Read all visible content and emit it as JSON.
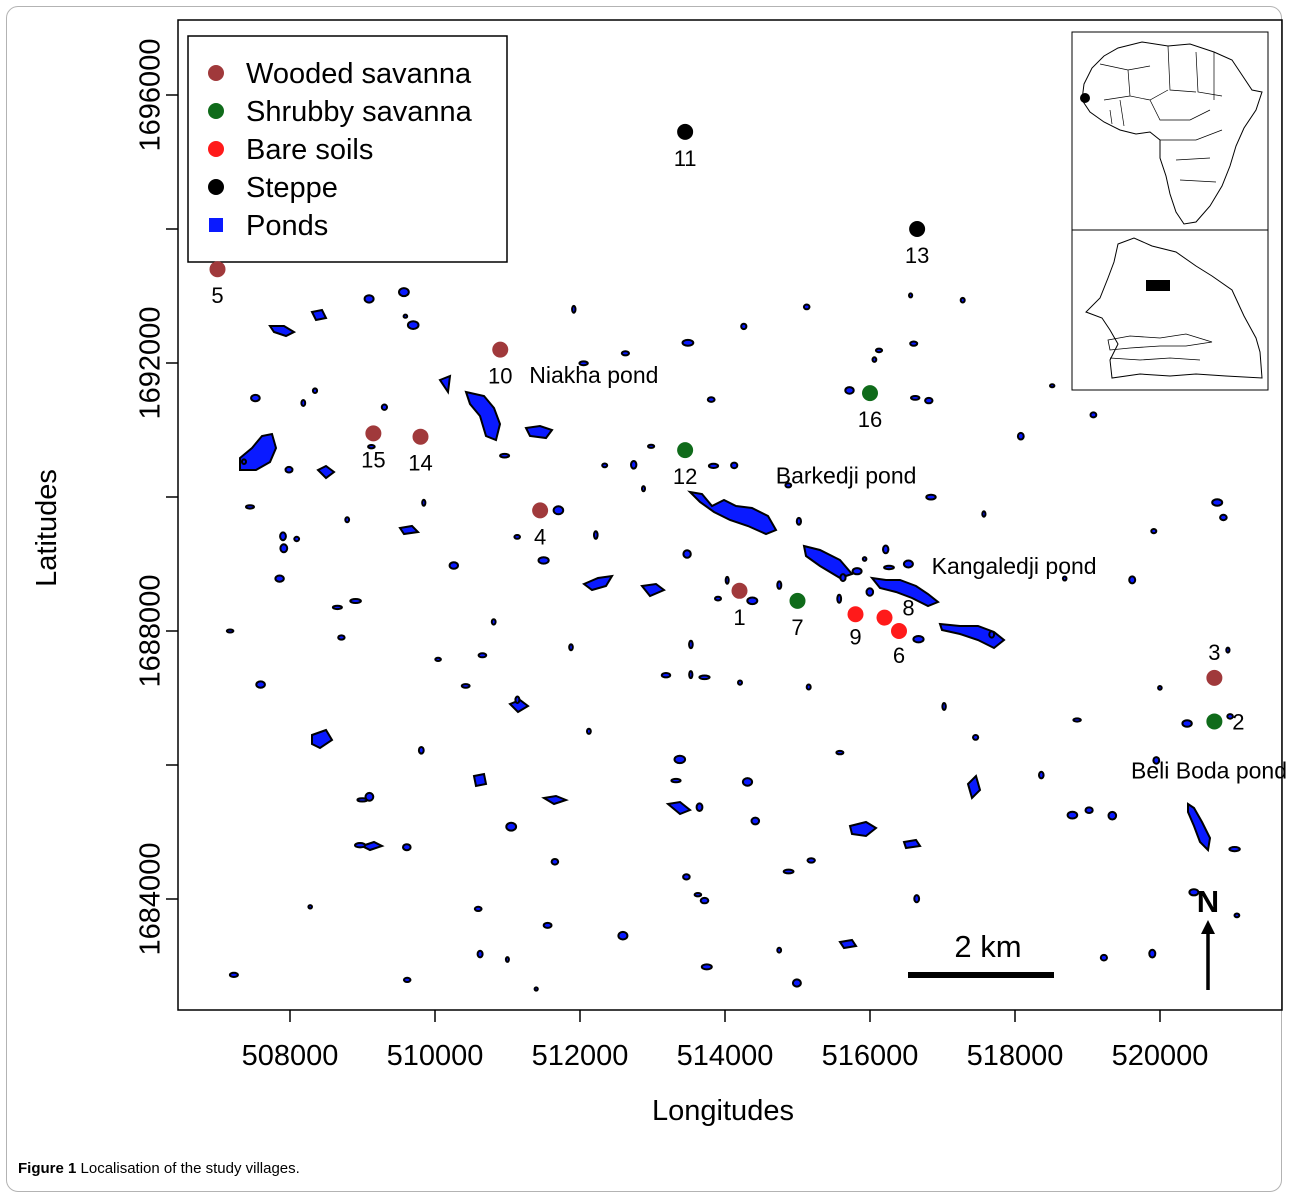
{
  "chart_data": {
    "type": "map",
    "xlabel": "Longitudes",
    "ylabel": "Latitudes",
    "xlim": [
      506500,
      521500
    ],
    "ylim": [
      1682000,
      1697600
    ],
    "x_ticks": [
      508000,
      510000,
      512000,
      514000,
      516000,
      518000,
      520000
    ],
    "x_tick_labels": [
      "508000",
      "510000",
      "512000",
      "514000",
      "516000",
      "518000",
      "520000"
    ],
    "y_ticks": [
      1684000,
      1688000,
      1692000,
      1696000
    ],
    "y_tick_labels": [
      "1684000",
      "1688000",
      "1692000",
      "1696000"
    ],
    "y_minor_ticks": [
      1686000,
      1690000,
      1694000
    ],
    "legend": {
      "placement": "top-left",
      "items": [
        {
          "label": "Wooded savanna",
          "color": "#a0393b",
          "shape": "circle"
        },
        {
          "label": "Shrubby savanna",
          "color": "#0f6b1a",
          "shape": "circle"
        },
        {
          "label": "Bare soils",
          "color": "#ff1a1a",
          "shape": "circle"
        },
        {
          "label": "Steppe",
          "color": "#000000",
          "shape": "circle"
        },
        {
          "label": "Ponds",
          "color": "#0a1aff",
          "shape": "square"
        }
      ]
    },
    "villages": [
      {
        "id": "1",
        "x": 514200,
        "y": 1688600,
        "class": "Wooded savanna"
      },
      {
        "id": "2",
        "x": 520750,
        "y": 1686650,
        "class": "Shrubby savanna"
      },
      {
        "id": "3",
        "x": 520750,
        "y": 1687300,
        "class": "Wooded savanna"
      },
      {
        "id": "4",
        "x": 511450,
        "y": 1689800,
        "class": "Wooded savanna"
      },
      {
        "id": "5",
        "x": 507000,
        "y": 1693400,
        "class": "Wooded savanna"
      },
      {
        "id": "6",
        "x": 516400,
        "y": 1688000,
        "class": "Bare soils"
      },
      {
        "id": "7",
        "x": 515000,
        "y": 1688450,
        "class": "Shrubby savanna"
      },
      {
        "id": "8",
        "x": 516200,
        "y": 1688200,
        "class": "Bare soils"
      },
      {
        "id": "9",
        "x": 515800,
        "y": 1688250,
        "class": "Bare soils"
      },
      {
        "id": "10",
        "x": 510900,
        "y": 1692200,
        "class": "Wooded savanna"
      },
      {
        "id": "11",
        "x": 513450,
        "y": 1695450,
        "class": "Steppe"
      },
      {
        "id": "12",
        "x": 513450,
        "y": 1690700,
        "class": "Shrubby savanna"
      },
      {
        "id": "13",
        "x": 516650,
        "y": 1694000,
        "class": "Steppe"
      },
      {
        "id": "14",
        "x": 509800,
        "y": 1690900,
        "class": "Wooded savanna"
      },
      {
        "id": "15",
        "x": 509150,
        "y": 1690950,
        "class": "Wooded savanna"
      },
      {
        "id": "16",
        "x": 516000,
        "y": 1691550,
        "class": "Shrubby savanna"
      }
    ],
    "pond_labels": [
      {
        "label": "Niakha pond",
        "x": 511300,
        "y": 1691700
      },
      {
        "label": "Barkedji pond",
        "x": 514700,
        "y": 1690200
      },
      {
        "label": "Kangaledji pond",
        "x": 516850,
        "y": 1688850
      },
      {
        "label": "Beli Boda pond",
        "x": 519600,
        "y": 1685800
      }
    ],
    "scale_bar": {
      "label": "2 km"
    },
    "north_arrow": {
      "label": "N"
    }
  },
  "caption": {
    "prefix": "Figure 1",
    "text": " Localisation of the study villages."
  }
}
